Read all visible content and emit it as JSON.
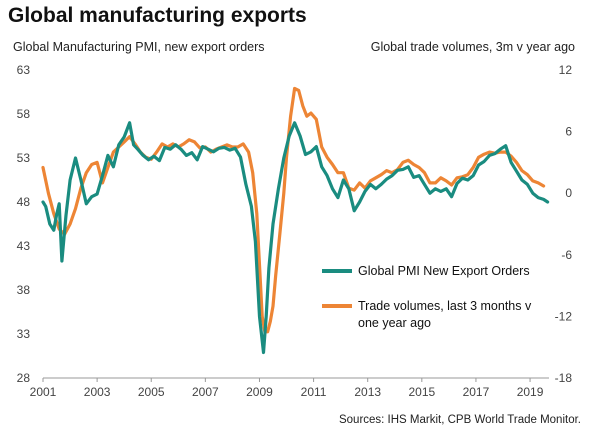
{
  "chart_data": {
    "type": "line",
    "title": "Global manufacturing exports",
    "left_axis_label": "Global Manufacturing PMI, new export orders",
    "right_axis_label": "Global trade volumes, 3m v year ago",
    "source": "Sources: IHS Markit, CPB World Trade Monitor.",
    "xlim": [
      2001,
      2019.7
    ],
    "x_ticks": [
      "2001",
      "2003",
      "2005",
      "2007",
      "2009",
      "2011",
      "2013",
      "2015",
      "2017",
      "2019"
    ],
    "ylim_left": [
      28,
      63
    ],
    "y_ticks_left": [
      "28",
      "33",
      "38",
      "43",
      "48",
      "53",
      "58",
      "63"
    ],
    "ylim_right": [
      -18,
      12
    ],
    "y_ticks_right": [
      "-18",
      "-12",
      "-6",
      "0",
      "6",
      "12"
    ],
    "grid": false,
    "legend_position": "center-right",
    "series": [
      {
        "name": "Global PMI New Export Orders",
        "axis": "left",
        "color": "#1a8c80",
        "x": [
          2001.0,
          2001.1,
          2001.25,
          2001.4,
          2001.5,
          2001.6,
          2001.7,
          2001.85,
          2002.0,
          2002.2,
          2002.4,
          2002.6,
          2002.8,
          2003.0,
          2003.2,
          2003.4,
          2003.6,
          2003.8,
          2004.0,
          2004.2,
          2004.35,
          2004.5,
          2004.7,
          2004.9,
          2005.1,
          2005.3,
          2005.5,
          2005.7,
          2005.9,
          2006.1,
          2006.3,
          2006.5,
          2006.7,
          2006.9,
          2007.1,
          2007.3,
          2007.5,
          2007.7,
          2007.9,
          2008.1,
          2008.3,
          2008.5,
          2008.7,
          2008.85,
          2009.0,
          2009.15,
          2009.25,
          2009.35,
          2009.5,
          2009.7,
          2009.9,
          2010.1,
          2010.3,
          2010.5,
          2010.7,
          2010.9,
          2011.1,
          2011.3,
          2011.5,
          2011.7,
          2011.9,
          2012.1,
          2012.3,
          2012.5,
          2012.7,
          2012.9,
          2013.1,
          2013.3,
          2013.5,
          2013.7,
          2013.9,
          2014.1,
          2014.3,
          2014.5,
          2014.7,
          2014.9,
          2015.1,
          2015.3,
          2015.5,
          2015.7,
          2015.9,
          2016.1,
          2016.3,
          2016.5,
          2016.7,
          2016.9,
          2017.1,
          2017.3,
          2017.5,
          2017.7,
          2017.9,
          2018.1,
          2018.3,
          2018.5,
          2018.7,
          2018.9,
          2019.1,
          2019.3,
          2019.5,
          2019.65
        ],
        "values": [
          48.0,
          47.5,
          45.5,
          44.8,
          46.5,
          47.8,
          41.3,
          46.5,
          50.5,
          53.0,
          50.5,
          47.8,
          48.6,
          48.9,
          51.0,
          53.3,
          52.0,
          54.5,
          55.4,
          57.0,
          54.5,
          54.0,
          53.3,
          52.8,
          53.2,
          52.7,
          54.2,
          54.0,
          54.5,
          54.0,
          53.3,
          53.6,
          52.8,
          54.3,
          54.0,
          53.7,
          54.1,
          54.2,
          53.9,
          54.1,
          53.1,
          50.0,
          47.5,
          43.5,
          35.0,
          30.9,
          35.0,
          40.5,
          45.5,
          49.5,
          53.0,
          55.5,
          57.0,
          55.5,
          53.4,
          53.7,
          54.3,
          52.0,
          51.0,
          49.5,
          48.5,
          50.5,
          49.5,
          47.0,
          48.0,
          49.2,
          50.0,
          49.5,
          50.0,
          50.6,
          51.0,
          51.6,
          51.7,
          52.0,
          50.8,
          51.0,
          50.0,
          49.0,
          49.5,
          49.2,
          49.5,
          48.6,
          50.1,
          50.7,
          50.5,
          51.0,
          52.2,
          52.6,
          53.3,
          53.5,
          54.0,
          54.4,
          52.5,
          51.5,
          50.5,
          50.0,
          49.0,
          48.5,
          48.3,
          48.0
        ]
      },
      {
        "name": "Trade volumes, last 3 months v one year ago",
        "axis": "right",
        "color": "#ed8535",
        "x": [
          2001.0,
          2001.2,
          2001.4,
          2001.6,
          2001.8,
          2002.0,
          2002.2,
          2002.4,
          2002.6,
          2002.8,
          2003.0,
          2003.2,
          2003.4,
          2003.6,
          2003.8,
          2004.0,
          2004.2,
          2004.4,
          2004.6,
          2004.8,
          2005.0,
          2005.2,
          2005.4,
          2005.6,
          2005.8,
          2006.0,
          2006.2,
          2006.4,
          2006.6,
          2006.8,
          2007.0,
          2007.2,
          2007.4,
          2007.6,
          2007.8,
          2008.0,
          2008.2,
          2008.4,
          2008.6,
          2008.75,
          2008.9,
          2009.0,
          2009.1,
          2009.2,
          2009.3,
          2009.4,
          2009.5,
          2009.6,
          2009.75,
          2009.9,
          2010.0,
          2010.15,
          2010.3,
          2010.45,
          2010.6,
          2010.75,
          2010.9,
          2011.1,
          2011.3,
          2011.5,
          2011.7,
          2011.9,
          2012.1,
          2012.3,
          2012.5,
          2012.7,
          2012.9,
          2013.1,
          2013.3,
          2013.5,
          2013.7,
          2013.9,
          2014.1,
          2014.3,
          2014.5,
          2014.7,
          2014.9,
          2015.1,
          2015.3,
          2015.5,
          2015.7,
          2015.9,
          2016.1,
          2016.3,
          2016.5,
          2016.7,
          2016.9,
          2017.1,
          2017.3,
          2017.5,
          2017.7,
          2017.9,
          2018.1,
          2018.3,
          2018.5,
          2018.7,
          2018.9,
          2019.1,
          2019.3,
          2019.5
        ],
        "values": [
          2.5,
          0.0,
          -2.0,
          -3.5,
          -4.0,
          -3.0,
          -1.5,
          0.5,
          2.0,
          2.8,
          3.0,
          1.0,
          2.5,
          4.0,
          4.5,
          5.0,
          5.5,
          4.8,
          4.0,
          3.5,
          3.3,
          4.0,
          4.8,
          4.5,
          4.8,
          4.5,
          4.8,
          5.2,
          5.0,
          4.4,
          4.5,
          4.0,
          4.3,
          4.5,
          4.7,
          4.5,
          4.5,
          4.8,
          4.0,
          2.0,
          -2.0,
          -7.0,
          -12.0,
          -13.5,
          -13.5,
          -12.5,
          -11.0,
          -8.0,
          -4.0,
          0.0,
          3.5,
          7.5,
          10.2,
          10.0,
          8.5,
          7.5,
          7.8,
          7.2,
          4.5,
          3.5,
          2.8,
          2.0,
          2.0,
          0.5,
          0.3,
          1.0,
          0.5,
          1.2,
          1.5,
          1.8,
          2.2,
          2.0,
          2.3,
          3.0,
          3.2,
          2.8,
          2.5,
          2.0,
          1.0,
          1.0,
          1.5,
          1.2,
          0.8,
          1.5,
          1.6,
          1.8,
          2.5,
          3.5,
          3.8,
          4.0,
          3.9,
          4.0,
          4.0,
          3.6,
          3.0,
          2.2,
          1.8,
          1.2,
          1.0,
          0.7
        ]
      }
    ]
  }
}
